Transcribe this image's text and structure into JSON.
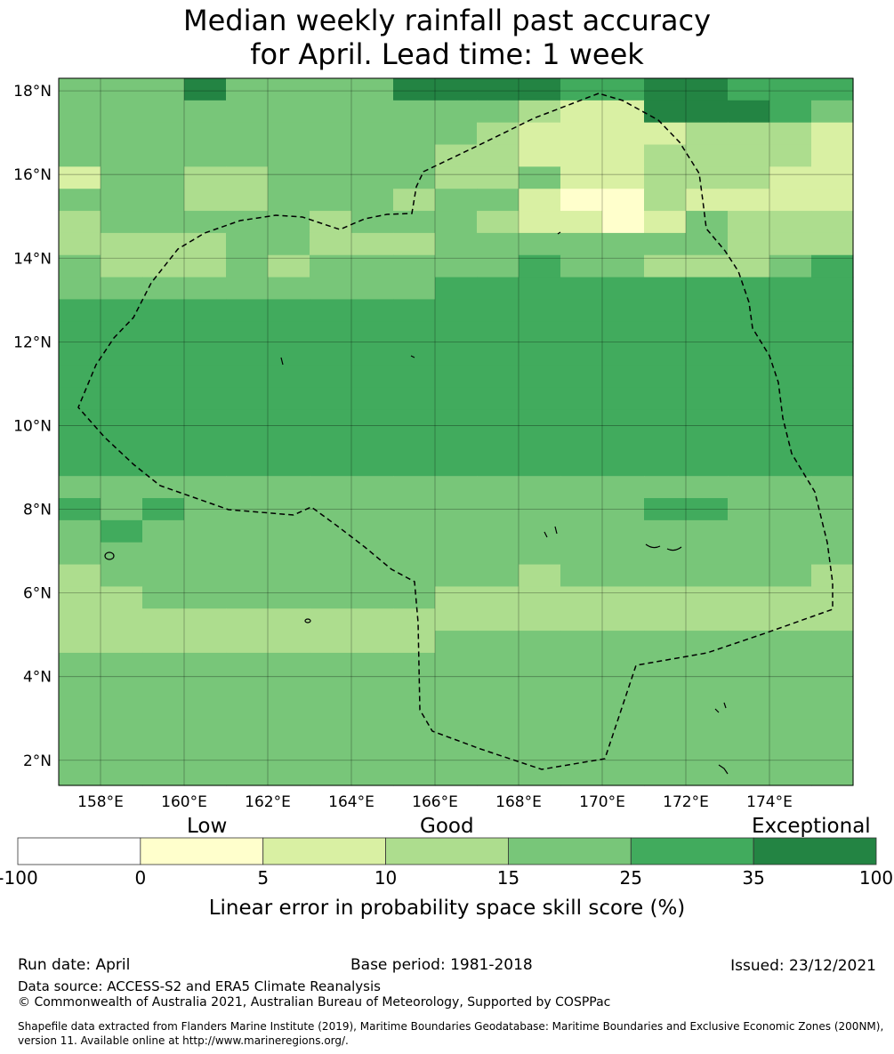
{
  "title_line1": "Median weekly rainfall past accuracy",
  "title_line2": "for April. Lead time: 1 week",
  "map": {
    "lon_range": [
      157,
      176
    ],
    "lat_range": [
      1.4,
      18.3
    ],
    "cell_size_deg": 0.83,
    "x_ticks": [
      "158°E",
      "160°E",
      "162°E",
      "164°E",
      "166°E",
      "168°E",
      "170°E",
      "172°E",
      "174°E"
    ],
    "x_tick_values": [
      158,
      160,
      162,
      164,
      166,
      168,
      170,
      172,
      174
    ],
    "y_ticks": [
      "2°N",
      "4°N",
      "6°N",
      "8°N",
      "10°N",
      "12°N",
      "14°N",
      "16°N",
      "18°N"
    ],
    "y_tick_values": [
      2,
      4,
      6,
      8,
      10,
      12,
      14,
      16,
      18
    ],
    "grid": true,
    "eez_boundary": "dashed",
    "skill_grid": [
      "4446444466665566555",
      "4444444444432266654",
      "4444444444322223332",
      "4444444443322233332",
      "2443344443342233322",
      "4443344434421132222",
      "3444443444322124333",
      "3333443334444444333",
      "4333434444454433345",
      "4444444445555555555",
      "5555555555555555555",
      "5555555555555555555",
      "5555555555555555555",
      "5555555555555555555",
      "5555555555555555555",
      "5555555555555555555",
      "5555555555555555555",
      "5555555555555555555",
      "4444444444444444444",
      "5454444444444455444",
      "4544444444444444444",
      "4444444444444444444",
      "3444444444434444443",
      "3344444443333333333",
      "3333333333333333333",
      "3333333334444444444",
      "4444444444444444444",
      "4444444444444444444",
      "4444444444444444444",
      "4444444444444444444",
      "4444444444444444444",
      "4444444444444444444"
    ]
  },
  "colorbar": {
    "categories": [
      "Low",
      "Good",
      "Exceptional"
    ],
    "bounds": [
      "-100",
      "0",
      "5",
      "10",
      "15",
      "25",
      "35",
      "100"
    ],
    "colors": [
      "#ffffff",
      "#ffffcc",
      "#d9f0a3",
      "#addd8e",
      "#78c679",
      "#41ab5d",
      "#238443"
    ],
    "label": "Linear error in probability space skill score (%)"
  },
  "footer": {
    "run_date": "Run date: April",
    "base_period": "Base period: 1981-2018",
    "issued": "Issued: 23/12/2021",
    "data_source": "Data source: ACCESS-S2 and ERA5 Climate Reanalysis",
    "copyright": "© Commonwealth of Australia 2021, Australian Bureau of Meteorology, Supported by COSPPac",
    "shapefile_line1": "Shapefile data extracted from Flanders Marine Institute (2019), Maritime Boundaries Geodatabase: Maritime Boundaries and Exclusive Economic Zones (200NM),",
    "shapefile_line2": "version 11. Available online at http://www.marineregions.org/."
  }
}
